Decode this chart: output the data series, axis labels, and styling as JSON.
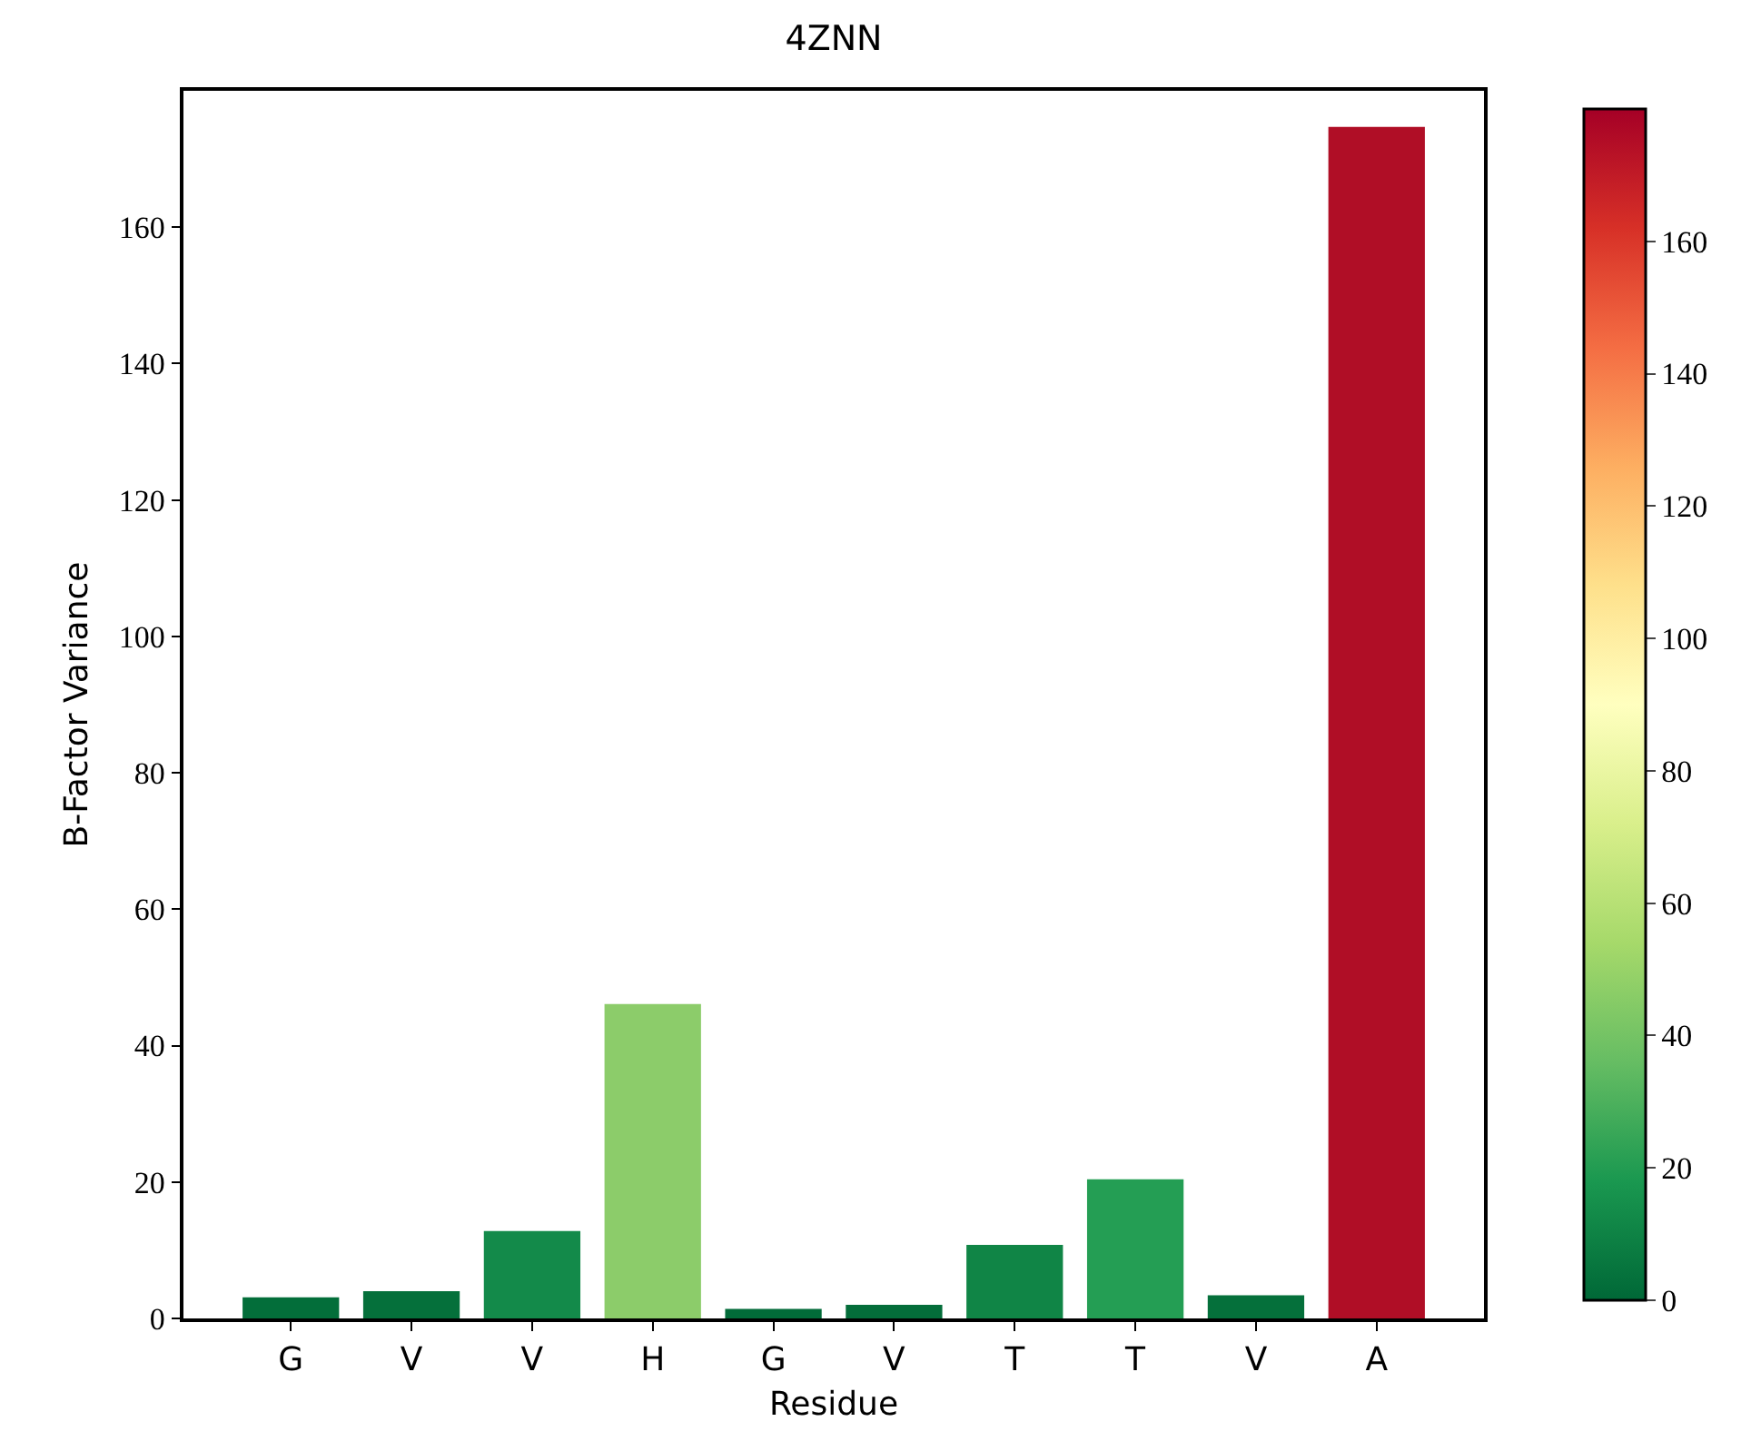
{
  "chart_data": {
    "type": "bar",
    "title": "4ZNN",
    "xlabel": "Residue",
    "ylabel": "B-Factor Variance",
    "categories": [
      "G",
      "V",
      "V",
      "H",
      "G",
      "V",
      "T",
      "T",
      "V",
      "A"
    ],
    "values": [
      3.1,
      4.0,
      12.8,
      46.1,
      1.4,
      2.0,
      10.8,
      20.4,
      3.4,
      174.7
    ],
    "colors": [
      "#036e3a",
      "#05703b",
      "#138a4a",
      "#8ccc6a",
      "#026b39",
      "#046d3a",
      "#108546",
      "#249e54",
      "#05703b",
      "#b00e26"
    ],
    "ylim": [
      0,
      180
    ],
    "yticks": [
      0,
      20,
      40,
      60,
      80,
      100,
      120,
      140,
      160
    ],
    "clim": [
      0,
      180
    ],
    "cticks": [
      0,
      20,
      40,
      60,
      80,
      100,
      120,
      140,
      160
    ],
    "grid": false,
    "legend": false
  }
}
